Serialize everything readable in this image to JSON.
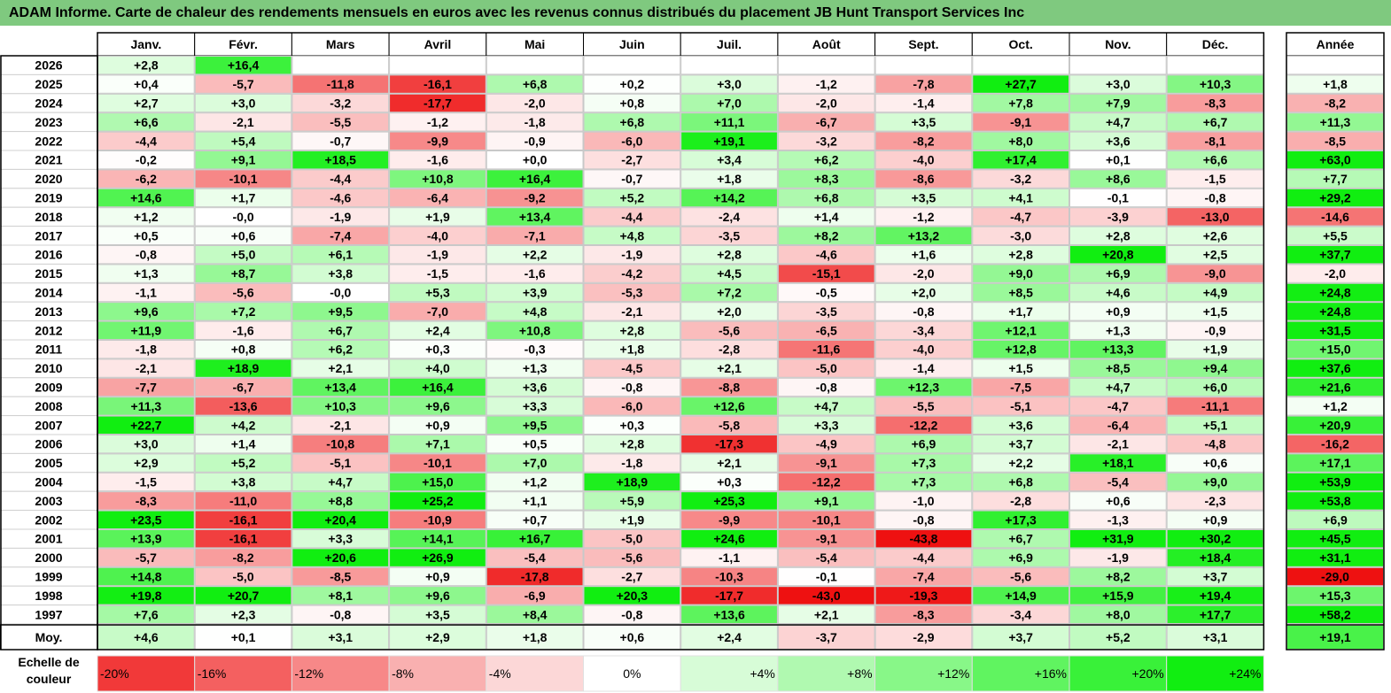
{
  "title": "ADAM Informe. Carte de chaleur des rendements mensuels en euros avec les revenus connus distribués du placement JB Hunt Transport Services Inc",
  "chart_data": {
    "type": "heatmap",
    "title": "ADAM Informe. Carte de chaleur des rendements mensuels en euros avec les revenus connus distribués du placement JB Hunt Transport Services Inc",
    "columns": [
      "Janv.",
      "Févr.",
      "Mars",
      "Avril",
      "Mai",
      "Juin",
      "Juil.",
      "Août",
      "Sept.",
      "Oct.",
      "Nov.",
      "Déc."
    ],
    "year_column_label": "Année",
    "rows": [
      {
        "label": "2026",
        "values": [
          "+2,8",
          "+16,4",
          "",
          "",
          "",
          "",
          "",
          "",
          "",
          "",
          "",
          ""
        ],
        "year": ""
      },
      {
        "label": "2025",
        "values": [
          "+0,4",
          "-5,7",
          "-11,8",
          "-16,1",
          "+6,8",
          "+0,2",
          "+3,0",
          "-1,2",
          "-7,8",
          "+27,7",
          "+3,0",
          "+10,3"
        ],
        "year": "+1,8"
      },
      {
        "label": "2024",
        "values": [
          "+2,7",
          "+3,0",
          "-3,2",
          "-17,7",
          "-2,0",
          "+0,8",
          "+7,0",
          "-2,0",
          "-1,4",
          "+7,8",
          "+7,9",
          "-8,3"
        ],
        "year": "-8,2"
      },
      {
        "label": "2023",
        "values": [
          "+6,6",
          "-2,1",
          "-5,5",
          "-1,2",
          "-1,8",
          "+6,8",
          "+11,1",
          "-6,7",
          "+3,5",
          "-9,1",
          "+4,7",
          "+6,7"
        ],
        "year": "+11,3"
      },
      {
        "label": "2022",
        "values": [
          "-4,4",
          "+5,4",
          "-0,7",
          "-9,9",
          "-0,9",
          "-6,0",
          "+19,1",
          "-3,2",
          "-8,2",
          "+8,0",
          "+3,6",
          "-8,1"
        ],
        "year": "-8,5"
      },
      {
        "label": "2021",
        "values": [
          "-0,2",
          "+9,1",
          "+18,5",
          "-1,6",
          "+0,0",
          "-2,7",
          "+3,4",
          "+6,2",
          "-4,0",
          "+17,4",
          "+0,1",
          "+6,6"
        ],
        "year": "+63,0"
      },
      {
        "label": "2020",
        "values": [
          "-6,2",
          "-10,1",
          "-4,4",
          "+10,8",
          "+16,4",
          "-0,7",
          "+1,8",
          "+8,3",
          "-8,6",
          "-3,2",
          "+8,6",
          "-1,5"
        ],
        "year": "+7,7"
      },
      {
        "label": "2019",
        "values": [
          "+14,6",
          "+1,7",
          "-4,6",
          "-6,4",
          "-9,2",
          "+5,2",
          "+14,2",
          "+6,8",
          "+3,5",
          "+4,1",
          "-0,1",
          "-0,8"
        ],
        "year": "+29,2"
      },
      {
        "label": "2018",
        "values": [
          "+1,2",
          "-0,0",
          "-1,9",
          "+1,9",
          "+13,4",
          "-4,4",
          "-2,4",
          "+1,4",
          "-1,2",
          "-4,7",
          "-3,9",
          "-13,0"
        ],
        "year": "-14,6"
      },
      {
        "label": "2017",
        "values": [
          "+0,5",
          "+0,6",
          "-7,4",
          "-4,0",
          "-7,1",
          "+4,8",
          "-3,5",
          "+8,2",
          "+13,2",
          "-3,0",
          "+2,8",
          "+2,6"
        ],
        "year": "+5,5"
      },
      {
        "label": "2016",
        "values": [
          "-0,8",
          "+5,0",
          "+6,1",
          "-1,9",
          "+2,2",
          "-1,9",
          "+2,8",
          "-4,6",
          "+1,6",
          "+2,8",
          "+20,8",
          "+2,5"
        ],
        "year": "+37,7"
      },
      {
        "label": "2015",
        "values": [
          "+1,3",
          "+8,7",
          "+3,8",
          "-1,5",
          "-1,6",
          "-4,2",
          "+4,5",
          "-15,1",
          "-2,0",
          "+9,0",
          "+6,9",
          "-9,0"
        ],
        "year": "-2,0"
      },
      {
        "label": "2014",
        "values": [
          "-1,1",
          "-5,6",
          "-0,0",
          "+5,3",
          "+3,9",
          "-5,3",
          "+7,2",
          "-0,5",
          "+2,0",
          "+8,5",
          "+4,6",
          "+4,9"
        ],
        "year": "+24,8"
      },
      {
        "label": "2013",
        "values": [
          "+9,6",
          "+7,2",
          "+9,5",
          "-7,0",
          "+4,8",
          "-2,1",
          "+2,0",
          "-3,5",
          "-0,8",
          "+1,7",
          "+0,9",
          "+1,5"
        ],
        "year": "+24,8"
      },
      {
        "label": "2012",
        "values": [
          "+11,9",
          "-1,6",
          "+6,7",
          "+2,4",
          "+10,8",
          "+2,8",
          "-5,6",
          "-6,5",
          "-3,4",
          "+12,1",
          "+1,3",
          "-0,9"
        ],
        "year": "+31,5"
      },
      {
        "label": "2011",
        "values": [
          "-1,8",
          "+0,8",
          "+6,2",
          "+0,3",
          "-0,3",
          "+1,8",
          "-2,8",
          "-11,6",
          "-4,0",
          "+12,8",
          "+13,3",
          "+1,9"
        ],
        "year": "+15,0"
      },
      {
        "label": "2010",
        "values": [
          "-2,1",
          "+18,9",
          "+2,1",
          "+4,0",
          "+1,3",
          "-4,5",
          "+2,1",
          "-5,0",
          "-1,4",
          "+1,5",
          "+8,5",
          "+9,4"
        ],
        "year": "+37,6"
      },
      {
        "label": "2009",
        "values": [
          "-7,7",
          "-6,7",
          "+13,4",
          "+16,4",
          "+3,6",
          "-0,8",
          "-8,8",
          "-0,8",
          "+12,3",
          "-7,5",
          "+4,7",
          "+6,0"
        ],
        "year": "+21,6"
      },
      {
        "label": "2008",
        "values": [
          "+11,3",
          "-13,6",
          "+10,3",
          "+9,6",
          "+3,3",
          "-6,0",
          "+12,6",
          "+4,7",
          "-5,5",
          "-5,1",
          "-4,7",
          "-11,1"
        ],
        "year": "+1,2"
      },
      {
        "label": "2007",
        "values": [
          "+22,7",
          "+4,2",
          "-2,1",
          "+0,9",
          "+9,5",
          "+0,3",
          "-5,8",
          "+3,3",
          "-12,2",
          "+3,6",
          "-6,4",
          "+5,1"
        ],
        "year": "+20,9"
      },
      {
        "label": "2006",
        "values": [
          "+3,0",
          "+1,4",
          "-10,8",
          "+7,1",
          "+0,5",
          "+2,8",
          "-17,3",
          "-4,9",
          "+6,9",
          "+3,7",
          "-2,1",
          "-4,8"
        ],
        "year": "-16,2"
      },
      {
        "label": "2005",
        "values": [
          "+2,9",
          "+5,2",
          "-5,1",
          "-10,1",
          "+7,0",
          "-1,8",
          "+2,1",
          "-9,1",
          "+7,3",
          "+2,2",
          "+18,1",
          "+0,6"
        ],
        "year": "+17,1"
      },
      {
        "label": "2004",
        "values": [
          "-1,5",
          "+3,8",
          "+4,7",
          "+15,0",
          "+1,2",
          "+18,9",
          "+0,3",
          "-12,2",
          "+7,3",
          "+6,8",
          "-5,4",
          "+9,0"
        ],
        "year": "+53,9"
      },
      {
        "label": "2003",
        "values": [
          "-8,3",
          "-11,0",
          "+8,8",
          "+25,2",
          "+1,1",
          "+5,9",
          "+25,3",
          "+9,1",
          "-1,0",
          "-2,8",
          "+0,6",
          "-2,3"
        ],
        "year": "+53,8"
      },
      {
        "label": "2002",
        "values": [
          "+23,5",
          "-16,1",
          "+20,4",
          "-10,9",
          "+0,7",
          "+1,9",
          "-9,9",
          "-10,1",
          "-0,8",
          "+17,3",
          "-1,3",
          "+0,9"
        ],
        "year": "+6,9"
      },
      {
        "label": "2001",
        "values": [
          "+13,9",
          "-16,1",
          "+3,3",
          "+14,1",
          "+16,7",
          "-5,0",
          "+24,6",
          "-9,1",
          "-43,8",
          "+6,7",
          "+31,9",
          "+30,2"
        ],
        "year": "+45,5"
      },
      {
        "label": "2000",
        "values": [
          "-5,7",
          "-8,2",
          "+20,6",
          "+26,9",
          "-5,4",
          "-5,6",
          "-1,1",
          "-5,4",
          "-4,4",
          "+6,9",
          "-1,9",
          "+18,4"
        ],
        "year": "+31,1"
      },
      {
        "label": "1999",
        "values": [
          "+14,8",
          "-5,0",
          "-8,5",
          "+0,9",
          "-17,8",
          "-2,7",
          "-10,3",
          "-0,1",
          "-7,4",
          "-5,6",
          "+8,2",
          "+3,7"
        ],
        "year": "-29,0"
      },
      {
        "label": "1998",
        "values": [
          "+19,8",
          "+20,7",
          "+8,1",
          "+9,6",
          "-6,9",
          "+20,3",
          "-17,7",
          "-43,0",
          "-19,3",
          "+14,9",
          "+15,9",
          "+19,4"
        ],
        "year": "+15,3"
      },
      {
        "label": "1997",
        "values": [
          "+7,6",
          "+2,3",
          "-0,8",
          "+3,5",
          "+8,4",
          "-0,8",
          "+13,6",
          "+2,1",
          "-8,3",
          "-3,4",
          "+8,0",
          "+17,7"
        ],
        "year": "+58,2"
      }
    ],
    "average_row": {
      "label": "Moy.",
      "values": [
        "+4,6",
        "+0,1",
        "+3,1",
        "+2,9",
        "+1,8",
        "+0,6",
        "+2,4",
        "-3,7",
        "-2,9",
        "+3,7",
        "+5,2",
        "+3,1"
      ],
      "year": "+19,1"
    },
    "color_scale": {
      "label": "Echelle de couleur",
      "steps": [
        "-20%",
        "-16%",
        "-12%",
        "-8%",
        "-4%",
        "0%",
        "+4%",
        "+8%",
        "+12%",
        "+16%",
        "+20%",
        "+24%"
      ],
      "step_values": [
        -20,
        -16,
        -12,
        -8,
        -4,
        0,
        4,
        8,
        12,
        16,
        20,
        24
      ]
    },
    "colors": {
      "negative": "#ee1111",
      "positive": "#11ee11",
      "neutral": "#ffffff",
      "title_bg": "#7fc97f"
    }
  }
}
